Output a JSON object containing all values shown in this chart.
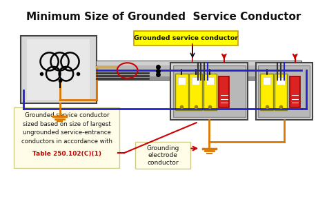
{
  "title": "Minimum Size of Grounded  Service Conductor",
  "title_fontsize": 11,
  "title_fontweight": "bold",
  "bg_color": "#ffffff",
  "fig_width": 4.74,
  "fig_height": 3.05,
  "label_grounded_service": "Grounded service conductor",
  "label_grounded_box": "Grounded service conductor\nsized based on size of largest\nungrounded service-entrance\nconductors in accordance with",
  "label_table": "Table 250.102(C)(1)",
  "label_grounding_electrode": "Grounding\nelectrode\nconductor",
  "yellow_bg": "#FFFF00",
  "cream_bg": "#FFFDE8",
  "red_text": "#CC0000",
  "black_text": "#111111",
  "gray_panel": "#b0b0b0",
  "dark_gray": "#444444",
  "silver_light": "#d8d8d8",
  "silver_mid": "#b8b8b8",
  "silver_dark": "#909090",
  "blue_wire": "#2222cc",
  "orange_wire": "#dd7700",
  "red_wire": "#cc0000",
  "black_wire": "#111111",
  "tan_wire": "#ccaa66"
}
